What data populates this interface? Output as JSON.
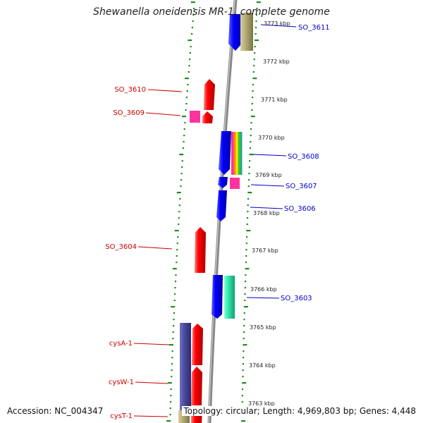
{
  "title": "Shewanella oneidensis MR-1, complete genome",
  "accession": "Accession: NC_004347",
  "topology": "Topology: circular; Length: 4,969,803 bp; Genes: 4,448",
  "kbp_labels": [
    "3773 kbp",
    "3772 kbp",
    "3771 kbp",
    "3770 kbp",
    "3769 kbp",
    "3768 kbp",
    "3767 kbp",
    "3766 kbp",
    "3765 kbp",
    "3764 kbp",
    "3763 kbp"
  ],
  "left_genes": [
    "SO_3610",
    "SO_3609",
    "SO_3604",
    "cysA-1",
    "cysW-1",
    "cysT-1"
  ],
  "right_genes": [
    "SO_3611",
    "SO_3608",
    "SO_3607",
    "SO_3606",
    "SO_3603"
  ],
  "colors": {
    "forward": "#ff0000",
    "reverse": "#0000ff",
    "left_label": "#cc0000",
    "right_label": "#0000cc",
    "tick": "#228b22",
    "backbone": "#888888",
    "olive": "#b5ad75",
    "purple": "#4b4ba0",
    "magenta": "#ff33a0",
    "aqua": "#33e6aa"
  }
}
